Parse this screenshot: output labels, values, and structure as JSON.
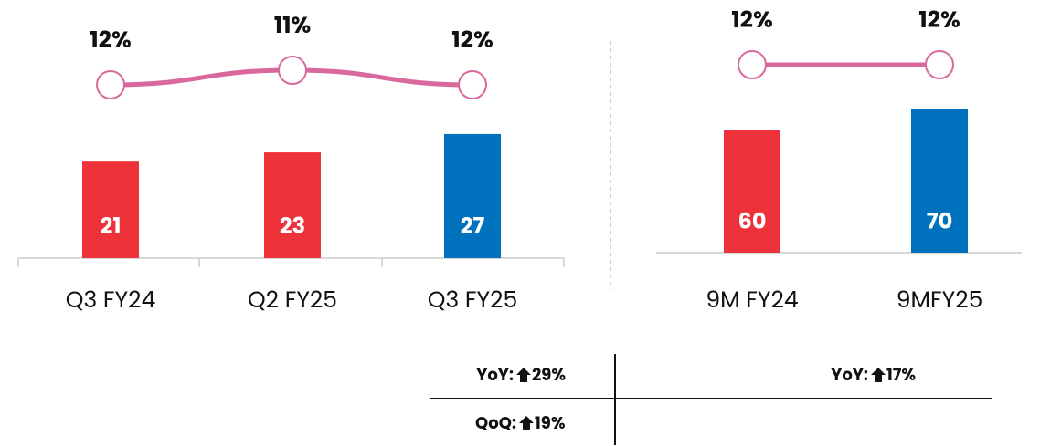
{
  "chart_data": [
    {
      "type": "bar",
      "categories": [
        "Q3 FY24",
        "Q2 FY25",
        "Q3 FY25"
      ],
      "values": [
        21,
        23,
        27
      ],
      "colors": [
        "#ee3239",
        "#ee3239",
        "#0071bc"
      ],
      "line": {
        "values": [
          12,
          11,
          12
        ],
        "value_labels": [
          "12%",
          "11%",
          "12%"
        ],
        "color": "#d9689d"
      }
    },
    {
      "type": "bar",
      "categories": [
        "9M FY24",
        "9MFY25"
      ],
      "values": [
        60,
        70
      ],
      "colors": [
        "#ee3239",
        "#0071bc"
      ],
      "line": {
        "values": [
          12,
          12
        ],
        "value_labels": [
          "12%",
          "12%"
        ],
        "color": "#d9689d"
      }
    }
  ],
  "table": [
    {
      "label": "YoY:",
      "change": "29%"
    },
    {
      "label": "YoY:",
      "change": "17%"
    },
    {
      "label": "QoQ:",
      "change": "19%"
    }
  ]
}
